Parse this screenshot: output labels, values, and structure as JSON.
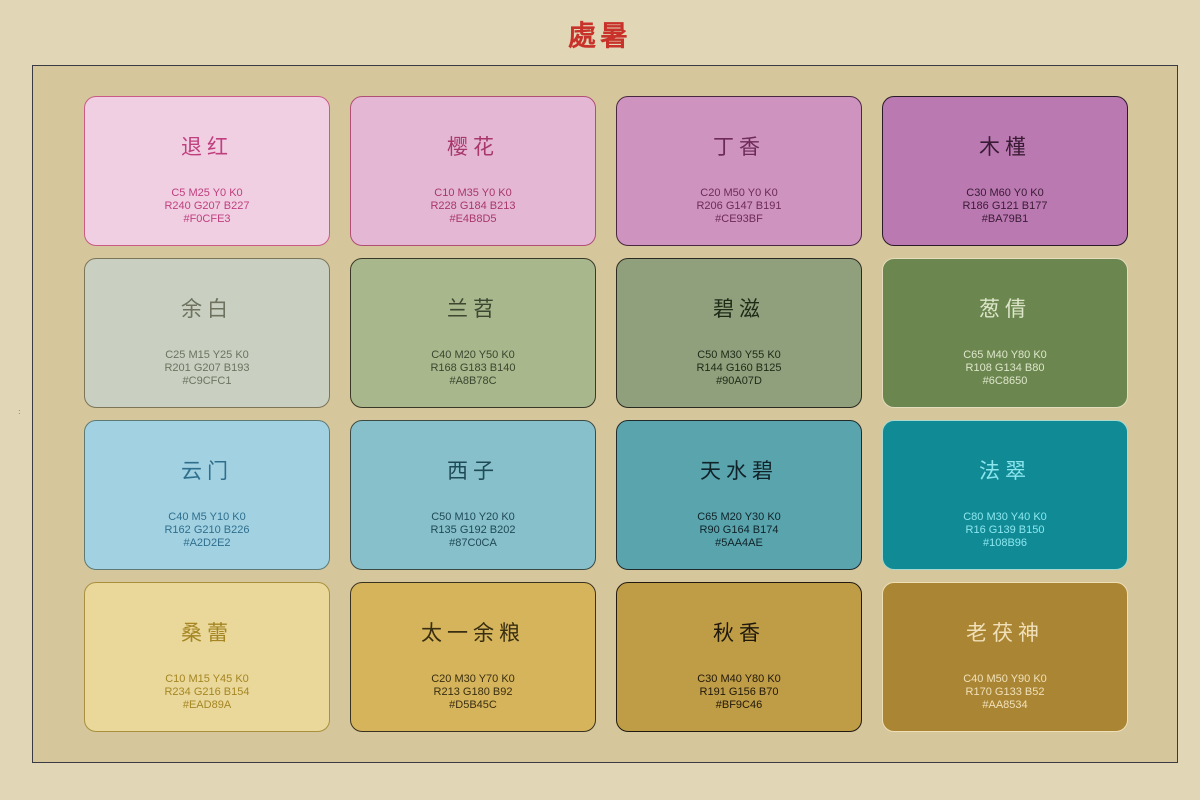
{
  "title": "處暑",
  "colors": [
    {
      "name": "退红",
      "cmyk": "C5 M25 Y0 K0",
      "rgb": "R240 G207 B227",
      "hex": "#F0CFE3",
      "fill": "#F0CFE3",
      "text": "#C03F7E",
      "border": "#C85C86"
    },
    {
      "name": "樱花",
      "cmyk": "C10 M35 Y0 K0",
      "rgb": "R228 G184 B213",
      "hex": "#E4B8D5",
      "fill": "#E4B8D5",
      "text": "#A8376A",
      "border": "#B04E76"
    },
    {
      "name": "丁香",
      "cmyk": "C20 M50 Y0 K0",
      "rgb": "R206 G147 B191",
      "hex": "#CE93BF",
      "fill": "#CE93BF",
      "text": "#6E2A58",
      "border": "#4A2740"
    },
    {
      "name": "木槿",
      "cmyk": "C30 M60 Y0 K0",
      "rgb": "R186 G121 B177",
      "hex": "#BA79B1",
      "fill": "#BA79B1",
      "text": "#3A1B35",
      "border": "#2A1A28"
    },
    {
      "name": "余白",
      "cmyk": "C25 M15 Y25 K0",
      "rgb": "R201 G207 B193",
      "hex": "#C9CFC1",
      "fill": "#C9CFC1",
      "text": "#6E735F",
      "border": "#7C7558"
    },
    {
      "name": "兰苕",
      "cmyk": "C40 M20 Y50 K0",
      "rgb": "R168 G183 B140",
      "hex": "#A8B78C",
      "fill": "#A8B78C",
      "text": "#3C4630",
      "border": "#3A3828"
    },
    {
      "name": "碧滋",
      "cmyk": "C50 M30 Y55 K0",
      "rgb": "R144 G160 B125",
      "hex": "#90A07D",
      "fill": "#90A07D",
      "text": "#1E2A16",
      "border": "#2A2A22"
    },
    {
      "name": "葱倩",
      "cmyk": "C65 M40 Y80 K0",
      "rgb": "R108 G134 B80",
      "hex": "#6C8650",
      "fill": "#6C8650",
      "text": "#DDE6C9",
      "border": "#E4DCBC"
    },
    {
      "name": "云门",
      "cmyk": "C40 M5 Y10 K0",
      "rgb": "R162 G210 B226",
      "hex": "#A2D2E2",
      "fill": "#A2D2E2",
      "text": "#2F6F8E",
      "border": "#5E7A74"
    },
    {
      "name": "西子",
      "cmyk": "C50 M10 Y20 K0",
      "rgb": "R135 G192 B202",
      "hex": "#87C0CA",
      "fill": "#87C0CA",
      "text": "#1E4A56",
      "border": "#3C4A45"
    },
    {
      "name": "天水碧",
      "cmyk": "C65 M20 Y30 K0",
      "rgb": "R90 G164 B174",
      "hex": "#5AA4AE",
      "fill": "#5AA4AE",
      "text": "#0F2328",
      "border": "#1E2A2C"
    },
    {
      "name": "法翠",
      "cmyk": "C80 M30 Y40 K0",
      "rgb": "R16 G139 B150",
      "hex": "#108B96",
      "fill": "#108B96",
      "text": "#8CE6EE",
      "border": "#A7D9CE"
    },
    {
      "name": "桑蕾",
      "cmyk": "C10 M15 Y45 K0",
      "rgb": "R234 G216 B154",
      "hex": "#EAD89A",
      "fill": "#EAD89A",
      "text": "#A58623",
      "border": "#A8903F"
    },
    {
      "name": "太一余粮",
      "cmyk": "C20 M30 Y70 K0",
      "rgb": "R213 G180 B92",
      "hex": "#D5B45C",
      "fill": "#D5B45C",
      "text": "#3A2E10",
      "border": "#3A3220"
    },
    {
      "name": "秋香",
      "cmyk": "C30 M40 Y80 K0",
      "rgb": "R191 G156 B70",
      "hex": "#BF9C46",
      "fill": "#BF9C46",
      "text": "#20180A",
      "border": "#201A10"
    },
    {
      "name": "老茯神",
      "cmyk": "C40 M50 Y90 K0",
      "rgb": "R170 G133 B52",
      "hex": "#AA8534",
      "fill": "#AA8534",
      "text": "#F0E0B8",
      "border": "#EEDFB6"
    }
  ]
}
